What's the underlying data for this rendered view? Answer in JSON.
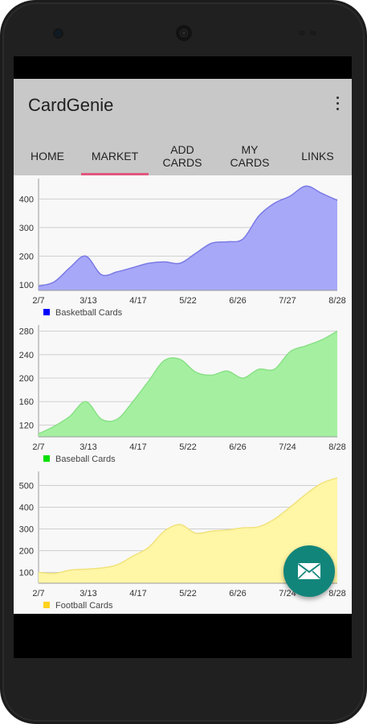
{
  "app": {
    "title": "CardGenie",
    "menu_icon": "more-vert-icon"
  },
  "tabs": [
    {
      "label": "HOME",
      "selected": false
    },
    {
      "label": "MARKET",
      "selected": true
    },
    {
      "label": "ADD\nCARDS",
      "selected": false
    },
    {
      "label": "MY\nCARDS",
      "selected": false
    },
    {
      "label": "LINKS",
      "selected": false
    }
  ],
  "colors": {
    "accent": "#e0577e",
    "fab": "#12857a",
    "basketball": "#0000ff",
    "baseball": "#00e000",
    "football": "#ffd21a"
  },
  "fab": {
    "icon": "email-icon"
  },
  "chart_data": [
    {
      "type": "area",
      "x": [
        "2/7",
        "2/21",
        "3/6",
        "3/13",
        "3/20",
        "4/3",
        "4/17",
        "5/1",
        "5/15",
        "5/22",
        "6/5",
        "6/19",
        "6/26",
        "7/10",
        "7/20",
        "7/27",
        "8/10",
        "8/17",
        "8/24",
        "8/28"
      ],
      "x_ticks": [
        "2/7",
        "3/13",
        "4/17",
        "5/22",
        "6/26",
        "7/27",
        "8/28"
      ],
      "values": [
        95,
        110,
        160,
        200,
        135,
        145,
        160,
        175,
        180,
        175,
        210,
        245,
        250,
        260,
        340,
        385,
        410,
        445,
        420,
        395
      ],
      "y_ticks": [
        100,
        200,
        300,
        400
      ],
      "ylim": [
        80,
        460
      ],
      "series_name": "Basketball Cards",
      "color": "#0000ff",
      "fill": "#a8a8f8",
      "stroke": "#7a7ae6",
      "grid": true,
      "legend_position": "bottom-left"
    },
    {
      "type": "area",
      "x": [
        "2/7",
        "2/21",
        "3/6",
        "3/13",
        "3/20",
        "4/3",
        "4/17",
        "5/1",
        "5/15",
        "5/22",
        "6/5",
        "6/19",
        "6/26",
        "7/10",
        "7/20",
        "7/24",
        "8/10",
        "8/17",
        "8/24",
        "8/28"
      ],
      "x_ticks": [
        "2/7",
        "3/13",
        "4/17",
        "5/22",
        "6/26",
        "7/24",
        "8/28"
      ],
      "values": [
        105,
        118,
        135,
        160,
        130,
        130,
        160,
        195,
        230,
        232,
        210,
        205,
        212,
        200,
        215,
        215,
        245,
        255,
        265,
        280
      ],
      "y_ticks": [
        120,
        160,
        200,
        240,
        280
      ],
      "ylim": [
        100,
        285
      ],
      "series_name": "Baseball Cards",
      "color": "#00e000",
      "fill": "#a4f0a0",
      "stroke": "#8ae087",
      "grid": true,
      "legend_position": "bottom-left"
    },
    {
      "type": "area",
      "x": [
        "2/7",
        "2/21",
        "3/6",
        "3/13",
        "3/20",
        "4/3",
        "4/17",
        "5/1",
        "5/15",
        "5/22",
        "6/5",
        "6/19",
        "6/26",
        "7/10",
        "7/20",
        "7/24",
        "8/10",
        "8/17",
        "8/24",
        "8/28"
      ],
      "x_ticks": [
        "2/7",
        "3/13",
        "4/17",
        "5/22",
        "6/26",
        "7/24",
        "8/28"
      ],
      "values": [
        100,
        95,
        110,
        115,
        120,
        135,
        175,
        215,
        290,
        320,
        280,
        290,
        295,
        305,
        310,
        345,
        400,
        460,
        510,
        535
      ],
      "y_ticks": [
        100,
        200,
        300,
        400,
        500
      ],
      "ylim": [
        50,
        550
      ],
      "series_name": "Football Cards",
      "color": "#ffd21a",
      "fill": "#fff6a6",
      "stroke": "#f2e27c",
      "grid": true,
      "legend_position": "bottom-left"
    }
  ]
}
